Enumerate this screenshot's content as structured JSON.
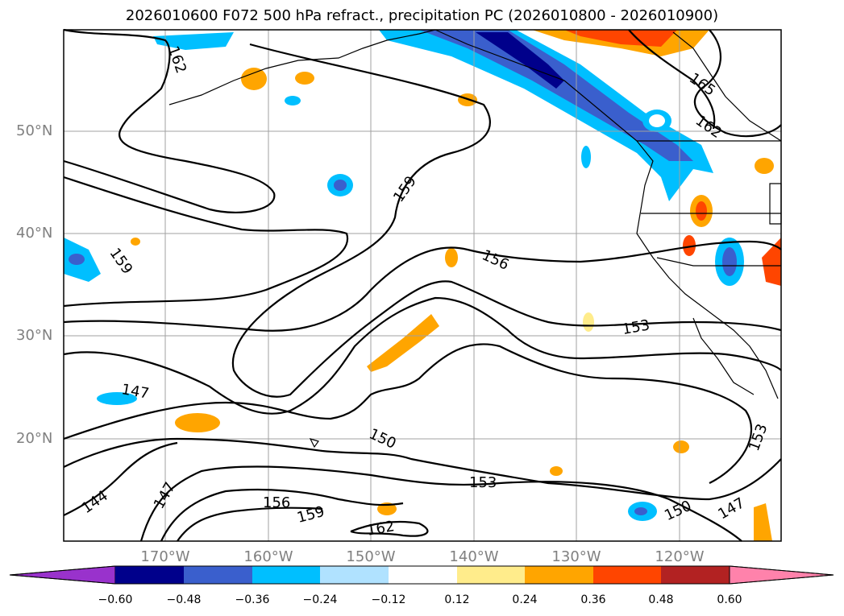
{
  "title": "2026010600 F072 500 hPa refract., precipitation PC (2026010800 - 2026010900)",
  "lat_labels": [
    "50°N",
    "40°N",
    "30°N",
    "20°N"
  ],
  "lon_labels": [
    "170°W",
    "160°W",
    "150°W",
    "140°W",
    "130°W",
    "120°W"
  ],
  "contour_labels": [
    "162",
    "165",
    "162",
    "159",
    "159",
    "156",
    "153",
    "147",
    "150",
    "153",
    "153",
    "144",
    "147",
    "156",
    "159",
    "162",
    "150",
    "147"
  ],
  "colorbar": {
    "tick_labels": [
      "−0.60",
      "−0.48",
      "−0.36",
      "−0.24",
      "−0.12",
      "0.12",
      "0.24",
      "0.36",
      "0.48",
      "0.60"
    ],
    "colors": [
      "#9932cc",
      "#00008b",
      "#3a5fcd",
      "#00bfff",
      "#b0e2ff",
      "#ffffff",
      "#ffec8b",
      "#ffa500",
      "#ff4500",
      "#b22222",
      "#ff82ab"
    ]
  },
  "colors": {
    "grid": "#a0a0a0",
    "contour": "#000000",
    "axis_label": "#808080"
  }
}
